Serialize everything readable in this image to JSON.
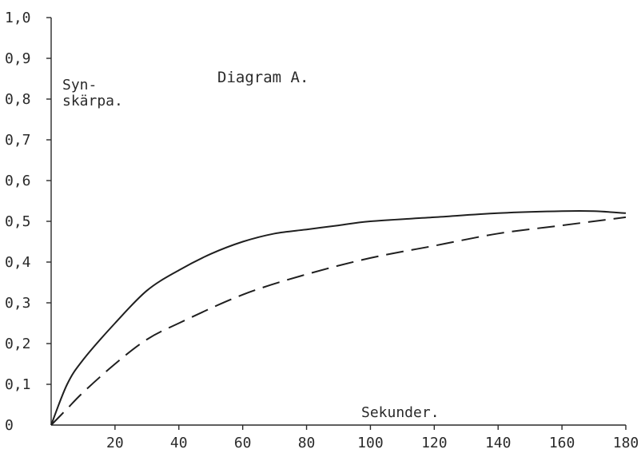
{
  "chart_data": {
    "type": "line",
    "title": "Diagram A.",
    "ylabel_lines": [
      "Syn-",
      "skärpa."
    ],
    "xlabel": "Sekunder.",
    "xlim": [
      0,
      180
    ],
    "ylim": [
      0,
      1.0
    ],
    "x_ticks": [
      20,
      40,
      60,
      80,
      100,
      120,
      140,
      160,
      180
    ],
    "x_tick_labels": [
      "20",
      "40",
      "60",
      "80",
      "100",
      "120",
      "140",
      "160",
      "180"
    ],
    "y_ticks": [
      0,
      0.1,
      0.2,
      0.3,
      0.4,
      0.5,
      0.6,
      0.7,
      0.8,
      0.9,
      1.0
    ],
    "y_tick_labels": [
      "0",
      "0,1",
      "0,2",
      "0,3",
      "0,4",
      "0,5",
      "0,6",
      "0,7",
      "0,8",
      "0,9",
      "1,0"
    ],
    "grid": false,
    "series": [
      {
        "line_style": "solid",
        "x": [
          0,
          5,
          10,
          20,
          30,
          40,
          50,
          60,
          70,
          80,
          90,
          100,
          120,
          140,
          160,
          170,
          180
        ],
        "y": [
          0,
          0.1,
          0.16,
          0.25,
          0.33,
          0.38,
          0.42,
          0.45,
          0.47,
          0.48,
          0.49,
          0.5,
          0.51,
          0.52,
          0.525,
          0.525,
          0.52
        ]
      },
      {
        "line_style": "dashed",
        "x": [
          0,
          5,
          10,
          20,
          30,
          40,
          60,
          80,
          100,
          120,
          140,
          160,
          180
        ],
        "y": [
          0,
          0.04,
          0.08,
          0.15,
          0.21,
          0.25,
          0.32,
          0.37,
          0.41,
          0.44,
          0.47,
          0.49,
          0.51
        ]
      }
    ]
  }
}
